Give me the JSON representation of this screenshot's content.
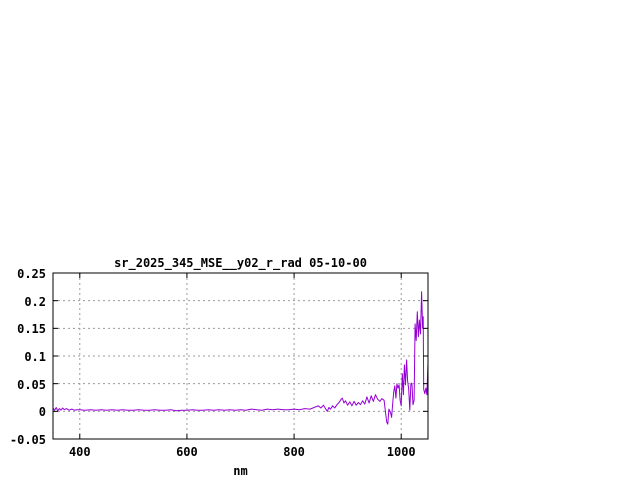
{
  "colors": {
    "background": "#ffffff",
    "text": "#000000",
    "border": "#000000",
    "grid": "#9b9b9b",
    "line": "#9400d3"
  },
  "chart_data": {
    "type": "line",
    "title": "sr_2025_345_MSE__y02_r_rad 05-10-00",
    "xlabel": "nm",
    "ylabel": "",
    "xlim": [
      350,
      1050
    ],
    "ylim": [
      -0.05,
      0.25
    ],
    "grid": true,
    "legend_position": "none",
    "xticks": [
      {
        "value": 400,
        "label": "400"
      },
      {
        "value": 600,
        "label": "600"
      },
      {
        "value": 800,
        "label": "800"
      },
      {
        "value": 1000,
        "label": "1000"
      }
    ],
    "yticks": [
      {
        "value": -0.05,
        "label": "-0.05"
      },
      {
        "value": 0,
        "label": "0"
      },
      {
        "value": 0.05,
        "label": "0.05"
      },
      {
        "value": 0.1,
        "label": "0.1"
      },
      {
        "value": 0.15,
        "label": "0.15"
      },
      {
        "value": 0.2,
        "label": "0.2"
      },
      {
        "value": 0.25,
        "label": "0.25"
      }
    ],
    "series": [
      {
        "name": "sr_2025_345_MSE__y02_r_rad",
        "color": "#9400d3",
        "points": [
          [
            350,
            0.006
          ],
          [
            353,
            0.002
          ],
          [
            356,
            0.007
          ],
          [
            359,
            0.001
          ],
          [
            362,
            0.005
          ],
          [
            365,
            0.002
          ],
          [
            368,
            0.006
          ],
          [
            371,
            0.003
          ],
          [
            375,
            0.005
          ],
          [
            380,
            0.002
          ],
          [
            385,
            0.004
          ],
          [
            390,
            0.002
          ],
          [
            395,
            0.003
          ],
          [
            400,
            0.003
          ],
          [
            410,
            0.002
          ],
          [
            420,
            0.003
          ],
          [
            430,
            0.002
          ],
          [
            440,
            0.003
          ],
          [
            450,
            0.002
          ],
          [
            460,
            0.003
          ],
          [
            470,
            0.002
          ],
          [
            480,
            0.003
          ],
          [
            490,
            0.002
          ],
          [
            500,
            0.002
          ],
          [
            510,
            0.003
          ],
          [
            520,
            0.002
          ],
          [
            530,
            0.002
          ],
          [
            540,
            0.003
          ],
          [
            550,
            0.002
          ],
          [
            560,
            0.002
          ],
          [
            570,
            0.003
          ],
          [
            580,
            0.001
          ],
          [
            590,
            0.002
          ],
          [
            600,
            0.002
          ],
          [
            610,
            0.003
          ],
          [
            620,
            0.002
          ],
          [
            630,
            0.002
          ],
          [
            640,
            0.003
          ],
          [
            650,
            0.002
          ],
          [
            660,
            0.003
          ],
          [
            670,
            0.002
          ],
          [
            680,
            0.003
          ],
          [
            690,
            0.002
          ],
          [
            700,
            0.003
          ],
          [
            710,
            0.002
          ],
          [
            720,
            0.004
          ],
          [
            730,
            0.003
          ],
          [
            740,
            0.002
          ],
          [
            750,
            0.004
          ],
          [
            760,
            0.003
          ],
          [
            770,
            0.004
          ],
          [
            780,
            0.003
          ],
          [
            790,
            0.003
          ],
          [
            800,
            0.004
          ],
          [
            810,
            0.003
          ],
          [
            820,
            0.005
          ],
          [
            830,
            0.004
          ],
          [
            840,
            0.008
          ],
          [
            845,
            0.01
          ],
          [
            850,
            0.006
          ],
          [
            855,
            0.011
          ],
          [
            860,
            0.003
          ],
          [
            862,
            0.0
          ],
          [
            865,
            0.007
          ],
          [
            868,
            0.004
          ],
          [
            872,
            0.01
          ],
          [
            876,
            0.006
          ],
          [
            880,
            0.012
          ],
          [
            884,
            0.016
          ],
          [
            888,
            0.022
          ],
          [
            890,
            0.024
          ],
          [
            893,
            0.015
          ],
          [
            896,
            0.019
          ],
          [
            900,
            0.011
          ],
          [
            904,
            0.017
          ],
          [
            908,
            0.01
          ],
          [
            912,
            0.018
          ],
          [
            916,
            0.011
          ],
          [
            920,
            0.016
          ],
          [
            924,
            0.012
          ],
          [
            928,
            0.019
          ],
          [
            932,
            0.013
          ],
          [
            936,
            0.026
          ],
          [
            940,
            0.015
          ],
          [
            944,
            0.028
          ],
          [
            948,
            0.018
          ],
          [
            952,
            0.03
          ],
          [
            956,
            0.022
          ],
          [
            960,
            0.018
          ],
          [
            964,
            0.023
          ],
          [
            968,
            0.02
          ],
          [
            971,
            -0.005
          ],
          [
            973,
            -0.02
          ],
          [
            975,
            -0.023
          ],
          [
            977,
            0.004
          ],
          [
            980,
            -0.002
          ],
          [
            982,
            -0.011
          ],
          [
            984,
            0.012
          ],
          [
            986,
            0.035
          ],
          [
            988,
            0.046
          ],
          [
            990,
            0.024
          ],
          [
            992,
            0.05
          ],
          [
            994,
            0.042
          ],
          [
            996,
            0.048
          ],
          [
            998,
            0.02
          ],
          [
            1000,
            0.01
          ],
          [
            1002,
            0.068
          ],
          [
            1004,
            0.03
          ],
          [
            1006,
            0.084
          ],
          [
            1008,
            0.048
          ],
          [
            1010,
            0.093
          ],
          [
            1012,
            0.055
          ],
          [
            1014,
            0.04
          ],
          [
            1016,
            0.002
          ],
          [
            1018,
            0.05
          ],
          [
            1020,
            0.051
          ],
          [
            1022,
            0.012
          ],
          [
            1024,
            0.02
          ],
          [
            1026,
            0.158
          ],
          [
            1028,
            0.128
          ],
          [
            1030,
            0.18
          ],
          [
            1032,
            0.135
          ],
          [
            1034,
            0.165
          ],
          [
            1036,
            0.14
          ],
          [
            1038,
            0.216
          ],
          [
            1040,
            0.15
          ],
          [
            1041,
            0.171
          ],
          [
            1042,
            0.04
          ],
          [
            1044,
            0.032
          ],
          [
            1046,
            0.042
          ],
          [
            1048,
            0.03
          ],
          [
            1050,
            0.088
          ]
        ]
      }
    ]
  }
}
